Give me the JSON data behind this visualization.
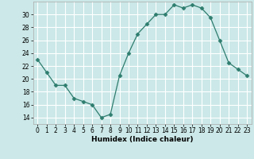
{
  "x": [
    0,
    1,
    2,
    3,
    4,
    5,
    6,
    7,
    8,
    9,
    10,
    11,
    12,
    13,
    14,
    15,
    16,
    17,
    18,
    19,
    20,
    21,
    22,
    23
  ],
  "y": [
    23,
    21,
    19,
    19,
    17,
    16.5,
    16,
    14,
    14.5,
    20.5,
    24,
    27,
    28.5,
    30,
    30,
    31.5,
    31,
    31.5,
    31,
    29.5,
    26,
    22.5,
    21.5,
    20.5
  ],
  "line_color": "#2e7d6e",
  "marker": "D",
  "marker_size": 2.5,
  "background_color": "#cce8e8",
  "grid_color": "#ffffff",
  "xlabel": "Humidex (Indice chaleur)",
  "ylabel": "",
  "xlim": [
    -0.5,
    23.5
  ],
  "ylim": [
    13,
    32
  ],
  "yticks": [
    14,
    16,
    18,
    20,
    22,
    24,
    26,
    28,
    30
  ],
  "xticks": [
    0,
    1,
    2,
    3,
    4,
    5,
    6,
    7,
    8,
    9,
    10,
    11,
    12,
    13,
    14,
    15,
    16,
    17,
    18,
    19,
    20,
    21,
    22,
    23
  ],
  "tick_fontsize": 5.5,
  "label_fontsize": 6.5
}
